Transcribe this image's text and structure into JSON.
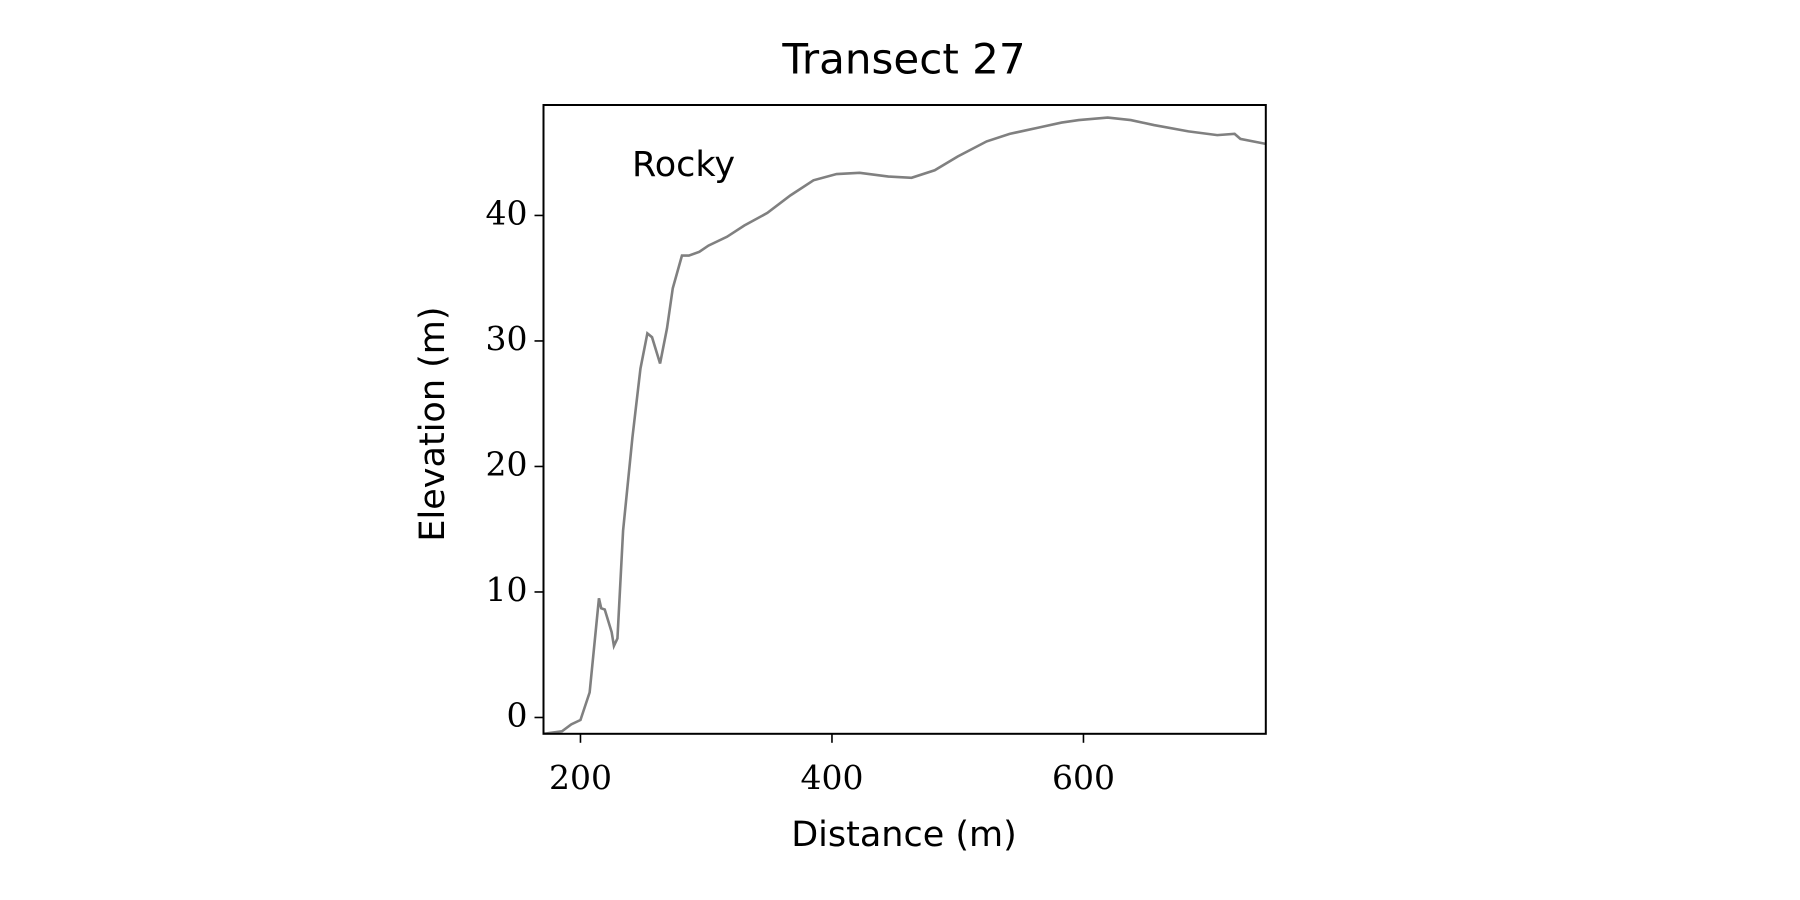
{
  "chart_data": {
    "type": "line",
    "title": "Transect 27",
    "xlabel": "Distance (m)",
    "ylabel": "Elevation (m)",
    "annotation": "Rocky",
    "x": [
      170.6,
      185.3,
      192.7,
      200,
      207.3,
      214.7,
      216.5,
      219.3,
      224.8,
      226.6,
      229.4,
      233.9,
      241.3,
      247.7,
      253.2,
      256.9,
      263.3,
      268.8,
      273.4,
      280.7,
      286.2,
      294.5,
      301.8,
      316.5,
      330.3,
      348.6,
      367,
      385.3,
      403.7,
      422,
      445,
      463.3,
      481.7,
      500,
      523,
      541.3,
      564.2,
      582.6,
      596.3,
      619.3,
      637.6,
      656,
      683.5,
      706.4,
      720.2,
      724.8,
      745
    ],
    "values": [
      -1.3,
      -1.1,
      -0.55,
      -0.2,
      2.0,
      9.5,
      8.7,
      8.6,
      6.8,
      5.7,
      6.3,
      14.9,
      22.3,
      27.8,
      30.6,
      30.3,
      28.2,
      31.0,
      34.2,
      36.8,
      36.8,
      37.1,
      37.6,
      38.3,
      39.2,
      40.2,
      41.6,
      42.8,
      43.3,
      43.4,
      43.1,
      43.0,
      43.6,
      44.7,
      45.9,
      46.5,
      47.0,
      47.4,
      47.6,
      47.8,
      47.6,
      47.2,
      46.7,
      46.4,
      46.5,
      46.1,
      45.7
    ],
    "color": "#808080",
    "xlim": [
      170.6,
      745
    ],
    "ylim": [
      -1.3,
      48.8
    ],
    "xticks": [
      200,
      400,
      600
    ],
    "yticks": [
      0,
      10,
      20,
      30,
      40
    ]
  }
}
